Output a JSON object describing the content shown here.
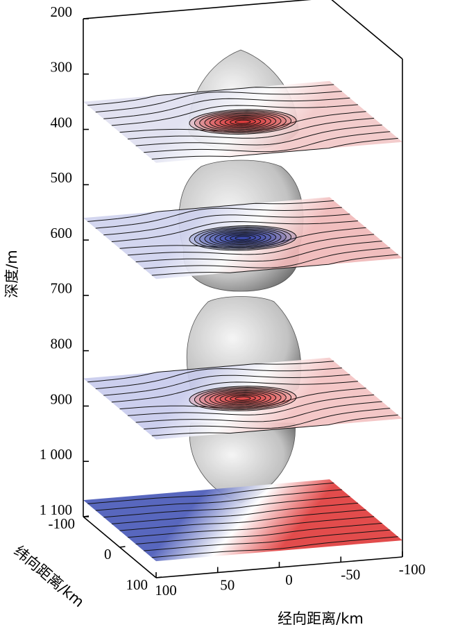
{
  "chart_data": {
    "type": "slices3d",
    "zlabel": "深度/m",
    "ylabel": "纬向距离/km",
    "xlabel": "经向距离/km",
    "zlim": [
      200,
      1100
    ],
    "zticks": [
      200,
      300,
      400,
      500,
      600,
      700,
      800,
      900,
      {
        "value": 1000,
        "label": "1 000"
      },
      {
        "value": 1100,
        "label": "1 100"
      }
    ],
    "xlim": [
      100,
      -100
    ],
    "xticks": [
      100,
      50,
      0,
      -50,
      -100
    ],
    "ylim": [
      -100,
      100
    ],
    "yticks": [
      -100,
      0,
      100
    ],
    "slices": [
      {
        "depth": 350,
        "back_color": "#dfe0f0",
        "front_color": "#f2c8c8",
        "center_color": "#d42020"
      },
      {
        "depth": 560,
        "back_color": "#cfd2ee",
        "front_color": "#f0b8b8",
        "center_color": "#1a2a9a"
      },
      {
        "depth": 850,
        "back_color": "#c8cbec",
        "front_color": "#f3c2c2",
        "center_color": "#e03030"
      },
      {
        "depth": 1070,
        "back_color": "#4a5ab8",
        "front_color": "#e03c3c",
        "center_color": null
      }
    ]
  }
}
